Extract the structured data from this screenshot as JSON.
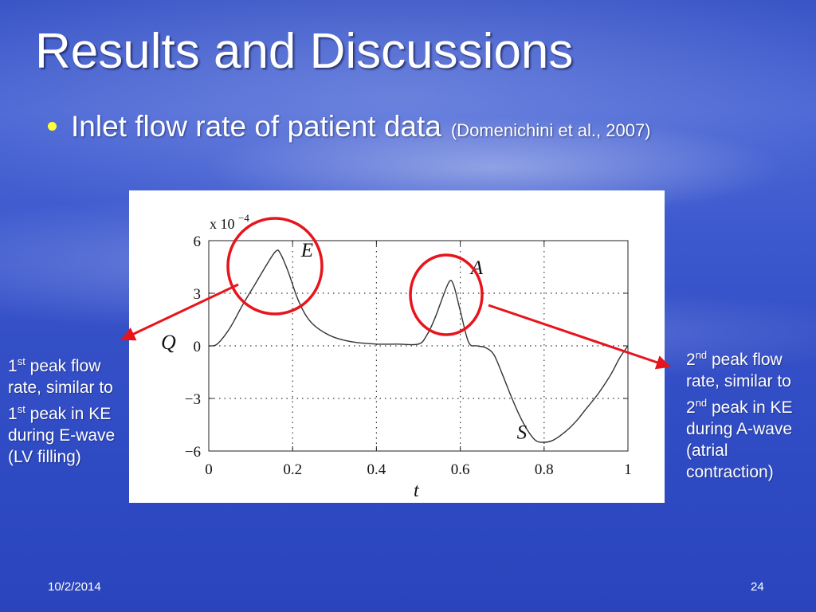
{
  "slide": {
    "title": "Results and Discussions",
    "bullet": "Inlet flow rate of patient data",
    "citation": "(Domenichini  et al., 2007)",
    "bullet_color": "#ffff33",
    "date": "10/2/2014",
    "page_number": "24"
  },
  "annotations": {
    "left": {
      "ord1_num": "1",
      "ord1_sup": "st",
      "ord1_rest": " peak flow rate, similar to ",
      "ord2_num": "1",
      "ord2_sup": "st",
      "ord2_rest": " peak in KE during E-wave (LV filling)"
    },
    "right": {
      "ord1_num": "2",
      "ord1_sup": "nd",
      "ord1_rest": " peak flow rate, similar to ",
      "ord2_num": "2",
      "ord2_sup": "nd",
      "ord2_rest": " peak in KE during A-wave (atrial contraction)"
    },
    "circle_color": "#e8141c",
    "arrow_color": "#e8141c"
  },
  "chart_data": {
    "type": "line",
    "xlabel": "t",
    "ylabel": "Q",
    "scale_label": "x 10",
    "scale_exponent": "−4",
    "xlim": [
      0,
      1
    ],
    "ylim": [
      -6,
      6
    ],
    "x_ticks": [
      0,
      0.2,
      0.4,
      0.6,
      0.8,
      1
    ],
    "x_tick_labels": [
      "0",
      "0.2",
      "0.4",
      "0.6",
      "0.8",
      "1"
    ],
    "y_ticks": [
      6,
      3,
      0,
      -3,
      -6
    ],
    "y_tick_labels": [
      "6",
      "3",
      "0",
      "−3",
      "−6"
    ],
    "grid": true,
    "series": [
      {
        "x": [
          0,
          0.02,
          0.05,
          0.08,
          0.11,
          0.14,
          0.16,
          0.17,
          0.19,
          0.21,
          0.23,
          0.25,
          0.28,
          0.31,
          0.35,
          0.4,
          0.45,
          0.5,
          0.52,
          0.54,
          0.56,
          0.575,
          0.585,
          0.6,
          0.62,
          0.64,
          0.66,
          0.68,
          0.7,
          0.72,
          0.74,
          0.76,
          0.78,
          0.8,
          0.82,
          0.84,
          0.86,
          0.88,
          0.9,
          0.93,
          0.96,
          0.98,
          1.0
        ],
        "y": [
          0,
          0.1,
          1.0,
          2.3,
          3.5,
          4.7,
          5.4,
          5.3,
          4.2,
          2.8,
          1.8,
          1.2,
          0.7,
          0.4,
          0.2,
          0.1,
          0.1,
          0.1,
          0.6,
          1.6,
          2.9,
          3.7,
          3.4,
          2.0,
          0.2,
          0.0,
          -0.1,
          -0.5,
          -1.6,
          -2.8,
          -3.9,
          -4.8,
          -5.4,
          -5.5,
          -5.4,
          -5.1,
          -4.7,
          -4.2,
          -3.6,
          -2.7,
          -1.6,
          -0.7,
          0.0
        ]
      }
    ],
    "point_labels": [
      {
        "text": "E",
        "x": 0.22,
        "y": 5.1
      },
      {
        "text": "A",
        "x": 0.625,
        "y": 4.1
      },
      {
        "text": "S",
        "x": 0.735,
        "y": -5.3
      }
    ]
  }
}
